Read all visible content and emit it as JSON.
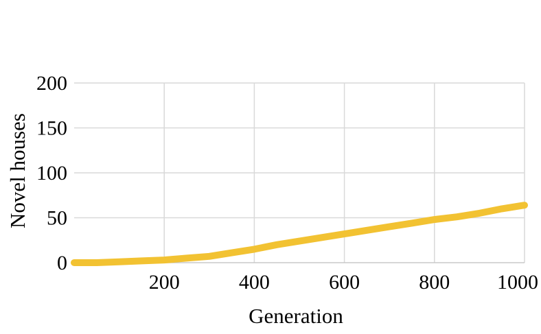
{
  "chart_data": {
    "type": "line",
    "title": "",
    "xlabel": "Generation",
    "ylabel": "Novel houses",
    "xlim": [
      0,
      1000
    ],
    "ylim": [
      0,
      200
    ],
    "x_ticks": [
      200,
      400,
      600,
      800,
      1000
    ],
    "y_ticks": [
      0,
      50,
      100,
      150,
      200
    ],
    "grid": true,
    "legend": "none",
    "series": [
      {
        "color": "#f2c232",
        "x": [
          0,
          50,
          100,
          150,
          200,
          250,
          300,
          350,
          400,
          450,
          500,
          550,
          600,
          650,
          700,
          750,
          800,
          850,
          900,
          950,
          1000
        ],
        "y": [
          0,
          0,
          1,
          2,
          3,
          5,
          7,
          11,
          15,
          20,
          24,
          28,
          32,
          36,
          40,
          44,
          48,
          51,
          55,
          60,
          64
        ]
      }
    ]
  }
}
